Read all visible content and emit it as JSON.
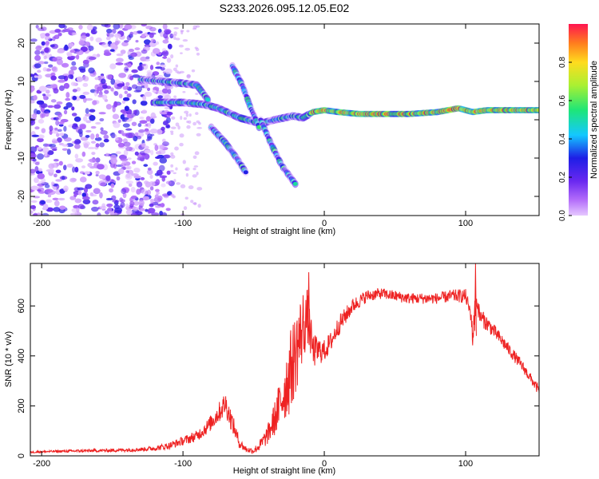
{
  "chart_data": [
    {
      "type": "heatmap",
      "title": "S233.2026.095.12.05.E02",
      "xlabel": "Height of straight line (km)",
      "ylabel": "Frequency (Hz)",
      "xlim": [
        -208,
        152
      ],
      "ylim": [
        -25,
        25
      ],
      "x_ticks": [
        -200,
        -100,
        0,
        100
      ],
      "x_tick_labels": [
        "-200",
        "-100",
        "0",
        "100"
      ],
      "y_ticks": [
        -20,
        -10,
        0,
        10,
        20
      ],
      "y_tick_labels": [
        "-20",
        "-10",
        "0",
        "10",
        "20"
      ],
      "colorbar": {
        "label": "Normalized spectral amplitude",
        "range": [
          0,
          1
        ],
        "ticks": [
          0.0,
          0.2,
          0.4,
          0.6,
          0.8
        ],
        "tick_labels": [
          "0.0",
          "0.2",
          "0.4",
          "0.6",
          "0.8"
        ]
      },
      "features": [
        {
          "name": "main-doppler-trace",
          "x": [
            -120,
            -100,
            -85,
            -75,
            -60,
            -45,
            -35,
            -22,
            -15,
            -8,
            0,
            10,
            25,
            40,
            60,
            80,
            95,
            105,
            115,
            130,
            152
          ],
          "y": [
            4.5,
            4.5,
            4,
            3,
            0.5,
            -1,
            0,
            1,
            0.5,
            2,
            2.5,
            2,
            1.5,
            1.5,
            1.5,
            2,
            3,
            2,
            2.5,
            2.5,
            2.5
          ]
        },
        {
          "name": "upper-branch",
          "x": [
            -130,
            -115,
            -100,
            -90,
            -82
          ],
          "y": [
            10.5,
            10,
            9.5,
            9,
            5
          ]
        },
        {
          "name": "descending-branch-1",
          "x": [
            -65,
            -58,
            -52,
            -46
          ],
          "y": [
            14,
            9,
            3,
            -2
          ]
        },
        {
          "name": "descending-branch-2",
          "x": [
            -80,
            -70,
            -62,
            -55
          ],
          "y": [
            -2,
            -6,
            -10,
            -14
          ]
        },
        {
          "name": "descending-branch-3",
          "x": [
            -45,
            -38,
            -30,
            -20
          ],
          "y": [
            0,
            -6,
            -12,
            -17
          ]
        }
      ]
    },
    {
      "type": "line",
      "title": "",
      "xlabel": "Height of straight line (km)",
      "ylabel": "SNR (10 * v/v)",
      "xlim": [
        -208,
        152
      ],
      "ylim": [
        0,
        770
      ],
      "x_ticks": [
        -200,
        -100,
        0,
        100
      ],
      "x_tick_labels": [
        "-200",
        "-100",
        "0",
        "100"
      ],
      "y_ticks": [
        0,
        200,
        400,
        600
      ],
      "y_tick_labels": [
        "0",
        "200",
        "400",
        "600"
      ],
      "color": "#ee2222",
      "grid": false,
      "series": [
        {
          "name": "SNR",
          "x": [
            -208,
            -190,
            -170,
            -150,
            -130,
            -120,
            -110,
            -100,
            -90,
            -82,
            -75,
            -70,
            -65,
            -60,
            -55,
            -50,
            -45,
            -40,
            -35,
            -30,
            -25,
            -20,
            -15,
            -12,
            -8,
            -4,
            0,
            5,
            10,
            20,
            30,
            40,
            50,
            60,
            70,
            80,
            90,
            100,
            104,
            105,
            106,
            108,
            110,
            120,
            130,
            140,
            152
          ],
          "y": [
            15,
            18,
            20,
            22,
            26,
            30,
            40,
            60,
            80,
            120,
            170,
            210,
            130,
            50,
            25,
            20,
            45,
            85,
            150,
            230,
            320,
            420,
            520,
            560,
            420,
            420,
            420,
            460,
            520,
            600,
            640,
            650,
            640,
            630,
            630,
            630,
            640,
            640,
            560,
            460,
            560,
            620,
            560,
            500,
            430,
            360,
            260
          ],
          "noise": [
            4,
            5,
            6,
            7,
            8,
            10,
            14,
            18,
            22,
            30,
            40,
            50,
            40,
            20,
            12,
            12,
            25,
            40,
            70,
            110,
            160,
            170,
            150,
            110,
            70,
            55,
            45,
            40,
            40,
            30,
            25,
            22,
            22,
            22,
            22,
            22,
            25,
            28,
            30,
            40,
            60,
            40,
            35,
            28,
            25,
            22,
            20
          ]
        }
      ],
      "annotations": [
        {
          "x": 107,
          "y": 770,
          "text": ""
        },
        {
          "x": -11,
          "y": 735,
          "text": ""
        }
      ]
    }
  ]
}
